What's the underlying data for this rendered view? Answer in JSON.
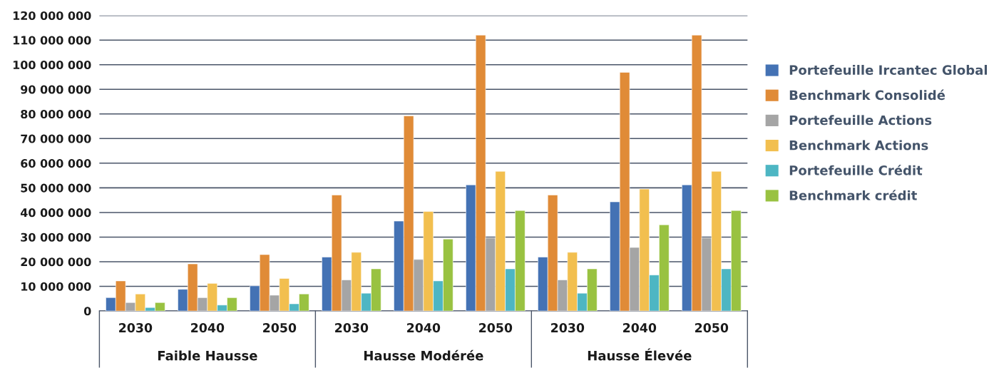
{
  "chart_data": {
    "type": "bar",
    "categories": [
      "2030",
      "2040",
      "2050",
      "2030",
      "2040",
      "2050",
      "2030",
      "2040",
      "2050"
    ],
    "series": [
      {
        "name": "Portefeuille Ircantec Global",
        "color": "#4472b4",
        "values": [
          5400000.0,
          8800000.0,
          10200000.0,
          21900000.0,
          36500000.0,
          51200000.0,
          21900000.0,
          44300000.0,
          51200000.0
        ]
      },
      {
        "name": "Benchmark Consolidé",
        "color": "#e08b37",
        "values": [
          12200000.0,
          19100000.0,
          22900000.0,
          47100000.0,
          79200000.0,
          112000000.0,
          47100000.0,
          96900000.0,
          112000000.0
        ]
      },
      {
        "name": "Portefeuille Actions",
        "color": "#a5a5a5",
        "values": [
          3400000.0,
          5400000.0,
          6400000.0,
          12600000.0,
          20900000.0,
          29700000.0,
          12600000.0,
          25800000.0,
          29700000.0
        ]
      },
      {
        "name": "Benchmark Actions",
        "color": "#f2bf4f",
        "values": [
          6900000.0,
          11200000.0,
          13200000.0,
          23800000.0,
          40400000.0,
          56700000.0,
          23800000.0,
          49500000.0,
          56700000.0
        ]
      },
      {
        "name": "Portefeuille Crédit",
        "color": "#4db6c3",
        "values": [
          1400000.0,
          2400000.0,
          2900000.0,
          7200000.0,
          12200000.0,
          17100000.0,
          7200000.0,
          14600000.0,
          17100000.0
        ]
      },
      {
        "name": "Benchmark crédit",
        "color": "#99c241",
        "values": [
          3400000.0,
          5400000.0,
          6900000.0,
          17100000.0,
          29200000.0,
          40800000.0,
          17100000.0,
          35000000.0,
          40800000.0
        ]
      }
    ],
    "ylim": [
      0,
      120000000
    ],
    "yticks": [
      {
        "value": 0,
        "label": "0"
      },
      {
        "value": 10000000,
        "label": "10 000 000"
      },
      {
        "value": 20000000,
        "label": "20 000 000"
      },
      {
        "value": 30000000,
        "label": "30 000 000"
      },
      {
        "value": 40000000,
        "label": "40 000 000"
      },
      {
        "value": 50000000,
        "label": "50 000 000"
      },
      {
        "value": 60000000,
        "label": "60 000 000"
      },
      {
        "value": 70000000,
        "label": "70 000 000"
      },
      {
        "value": 80000000,
        "label": "80 000 000"
      },
      {
        "value": 90000000,
        "label": "90 000 000"
      },
      {
        "value": 100000000,
        "label": "100 000 000"
      },
      {
        "value": 110000000,
        "label": "110 000 000"
      },
      {
        "value": 120000000,
        "label": "120 000 000"
      }
    ],
    "annotations": [
      "Faible Hausse",
      "Hausse Modérée",
      "Hausse Élevée"
    ],
    "grid": "y",
    "legend": "right"
  }
}
